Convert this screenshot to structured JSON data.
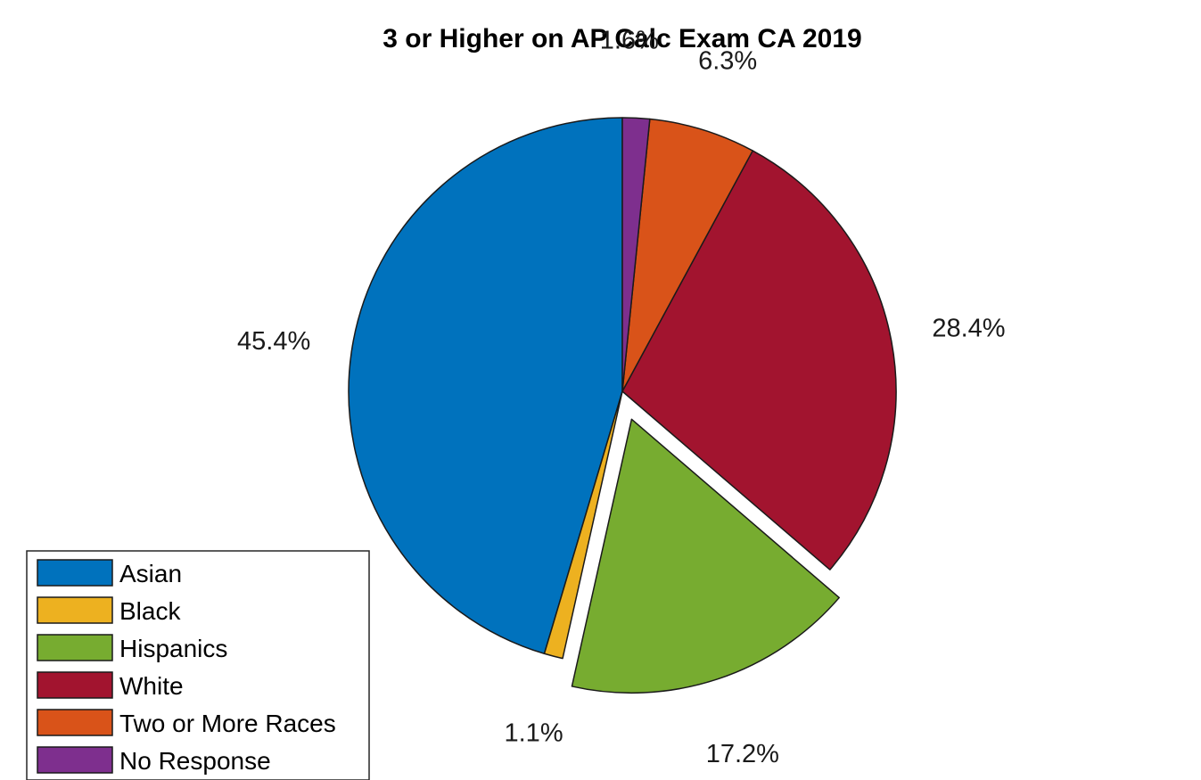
{
  "chart_data": {
    "type": "pie",
    "title": "3 or Higher on AP Calc Exam CA 2019",
    "categories": [
      "Asian",
      "Black",
      "Hispanics",
      "White",
      "Two or More Races",
      "No Response"
    ],
    "values": [
      45.4,
      1.1,
      17.2,
      28.4,
      6.3,
      1.6
    ],
    "labels": [
      "45.4%",
      "1.1%",
      "17.2%",
      "28.4%",
      "6.3%",
      "1.6%"
    ],
    "colors": [
      "#0072BD",
      "#EDB120",
      "#77AC30",
      "#A2142F",
      "#D95319",
      "#7E2F8E"
    ],
    "exploded": [
      "Hispanics"
    ],
    "legend": {
      "entries": [
        "Asian",
        "Black",
        "Hispanics",
        "White",
        "Two or More Races",
        "No Response"
      ],
      "location": "bottom-left"
    }
  }
}
